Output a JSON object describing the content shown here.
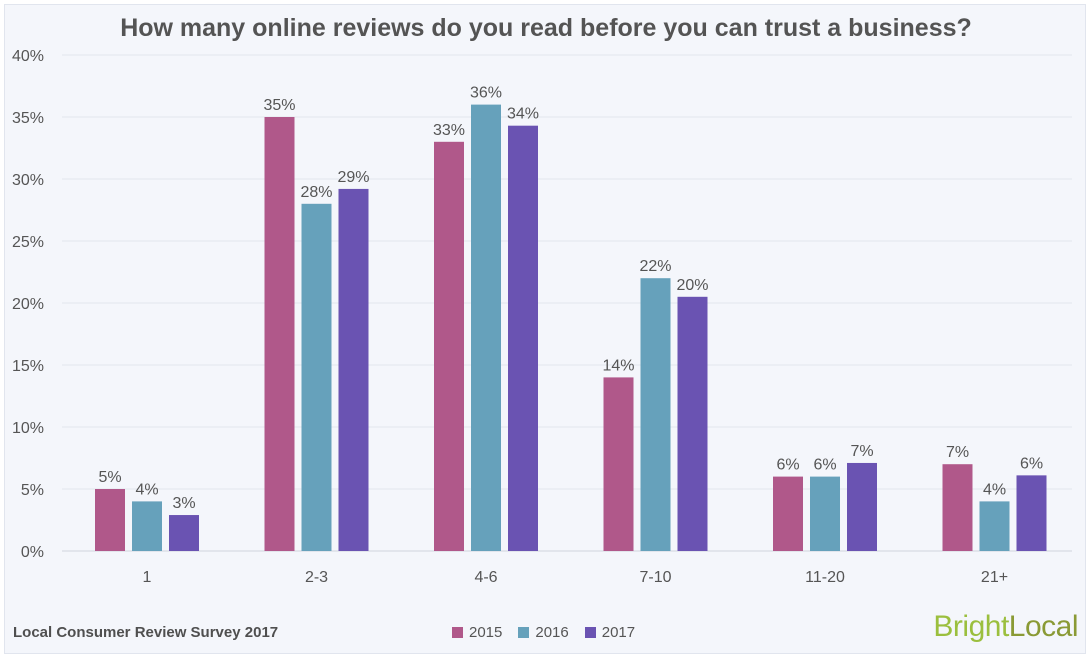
{
  "colors": {
    "2015": "#b0588a",
    "2016": "#66a1bb",
    "2017": "#6a53b2",
    "axis_text": "#555555",
    "grid": "#e2e6ee"
  },
  "footer": {
    "source": "Local Consumer Review Survey 2017"
  },
  "logo": {
    "part1": "Bright",
    "part2": "Local"
  },
  "chart_data": {
    "type": "bar",
    "title": "How many online reviews do you read before you can trust a business?",
    "xlabel": "",
    "ylabel": "",
    "categories": [
      "1",
      "2-3",
      "4-6",
      "7-10",
      "11-20",
      "21+"
    ],
    "series": [
      {
        "name": "2015",
        "values": [
          5,
          35,
          33,
          14,
          6,
          7
        ],
        "labels": [
          "5%",
          "35%",
          "33%",
          "14%",
          "6%",
          "7%"
        ]
      },
      {
        "name": "2016",
        "values": [
          4,
          28,
          36,
          22,
          6,
          4
        ],
        "labels": [
          "4%",
          "28%",
          "36%",
          "22%",
          "6%",
          "4%"
        ]
      },
      {
        "name": "2017",
        "values": [
          2.9,
          29.2,
          34.3,
          20.5,
          7.1,
          6.1
        ],
        "labels": [
          "3%",
          "29%",
          "34%",
          "20%",
          "7%",
          "6%"
        ]
      }
    ],
    "ylim": [
      0,
      40
    ],
    "yticks": [
      0,
      5,
      10,
      15,
      20,
      25,
      30,
      35,
      40
    ],
    "ytick_labels": [
      "0%",
      "5%",
      "10%",
      "15%",
      "20%",
      "25%",
      "30%",
      "35%",
      "40%"
    ],
    "grid": true,
    "legend": "bottom-center"
  }
}
